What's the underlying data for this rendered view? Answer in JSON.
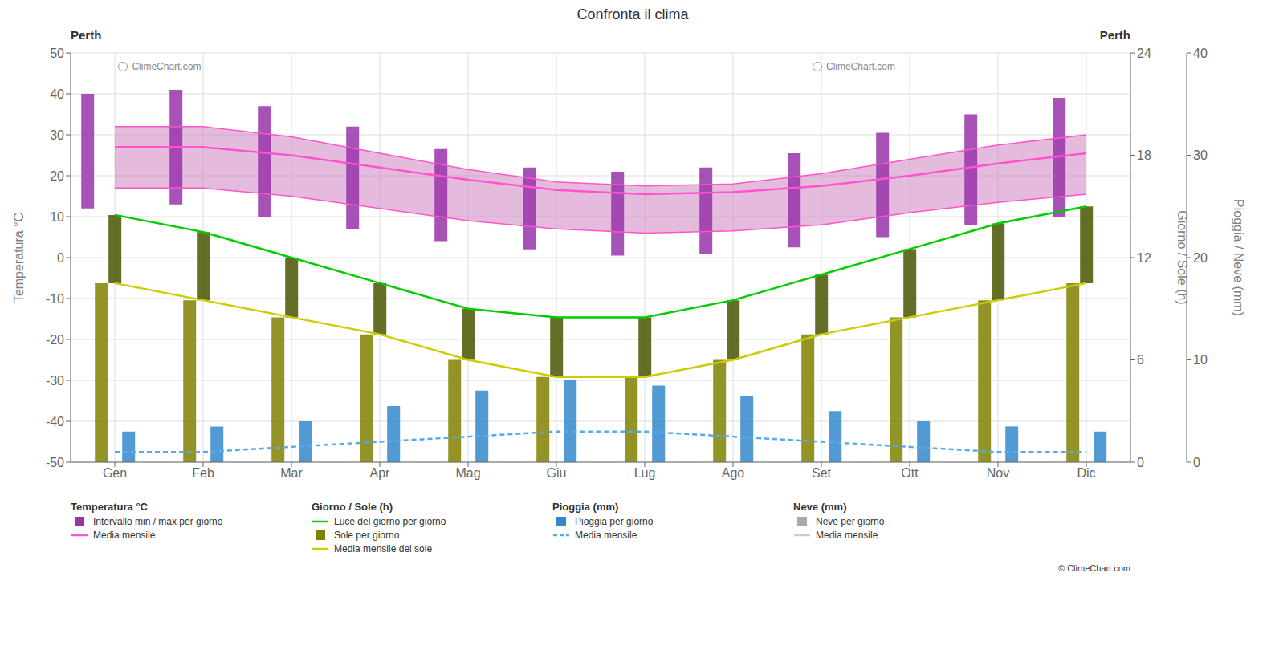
{
  "chart_data": {
    "type": "bar",
    "title": "Confronta il clima",
    "subtitle": "Perth",
    "categories": [
      "Gen",
      "Feb",
      "Mar",
      "Apr",
      "Mag",
      "Giu",
      "Lug",
      "Ago",
      "Set",
      "Ott",
      "Nov",
      "Dic"
    ],
    "y_label": "Temperatura °C",
    "y2_label": "Giorno / Sole (h)",
    "y3_label": "Pioggia / Neve (mm)",
    "ylim": [
      -50,
      50
    ],
    "yticks": [
      -50,
      -40,
      -30,
      -20,
      -10,
      0,
      10,
      20,
      30,
      40,
      50
    ],
    "y2lim": [
      0,
      24
    ],
    "y2ticks": [
      0,
      6,
      12,
      18,
      24
    ],
    "y3lim": [
      0,
      40
    ],
    "y3ticks": [
      0,
      10,
      20,
      30,
      40
    ],
    "grid": true,
    "legend": "bottom",
    "legend_groups": [
      "Temperatura °C",
      "Giorno / Sole (h)",
      "Pioggia (mm)",
      "Neve (mm)"
    ],
    "series": [
      {
        "name": "Intervallo min / max per giorno",
        "group": "Temperatura °C",
        "type": "range_bar",
        "color": "#9933aa",
        "low": [
          12.0,
          13.0,
          10.0,
          7.0,
          4.0,
          2.0,
          0.5,
          1.0,
          2.5,
          5.0,
          8.0,
          10.0
        ],
        "high": [
          40.0,
          41.0,
          37.0,
          32.0,
          26.5,
          22.0,
          21.0,
          22.0,
          25.5,
          30.5,
          35.0,
          39.0
        ]
      },
      {
        "type": "range_area",
        "color": "#cc77bb",
        "low": [
          17.0,
          17.0,
          15.0,
          12.0,
          9.0,
          7.0,
          6.0,
          6.5,
          8.0,
          11.0,
          13.5,
          15.5
        ],
        "high": [
          32.0,
          32.0,
          29.5,
          25.5,
          21.5,
          18.5,
          17.5,
          18.0,
          20.5,
          24.0,
          27.5,
          30.0
        ]
      },
      {
        "name": "Media mensile",
        "group": "Temperatura °C",
        "type": "line",
        "color": "#ff55cc",
        "values": [
          27.0,
          27.0,
          25.0,
          22.0,
          19.0,
          16.5,
          15.5,
          16.0,
          17.5,
          20.0,
          23.0,
          25.5
        ]
      },
      {
        "type": "line",
        "color": "#ff55cc",
        "values": [
          17.0,
          17.0,
          15.0,
          12.0,
          9.0,
          7.0,
          6.0,
          6.5,
          8.0,
          11.0,
          13.5,
          15.5
        ]
      },
      {
        "type": "line",
        "color": "#ff55cc",
        "values": [
          32.0,
          32.0,
          29.5,
          25.5,
          21.5,
          18.5,
          17.5,
          18.0,
          20.5,
          24.0,
          27.5,
          30.0
        ]
      },
      {
        "name": "Luce del giorno per giorno",
        "group": "Giorno / Sole (h)",
        "type": "line",
        "color": "#00cc00",
        "axis": "y2",
        "values": [
          14.5,
          13.5,
          12.0,
          10.5,
          9.0,
          8.5,
          8.5,
          9.5,
          11.0,
          12.5,
          14.0,
          15.0
        ]
      },
      {
        "name": "Sole per giorno",
        "group": "Giorno / Sole (h)",
        "color": "#808000",
        "axis": "y2",
        "values": [
          10.5,
          9.5,
          8.5,
          7.5,
          6.0,
          5.0,
          5.0,
          6.0,
          7.5,
          8.5,
          9.5,
          10.5
        ]
      },
      {
        "type": "range_bar",
        "color": "#4a5500",
        "axis": "y2",
        "low": [
          10.5,
          9.5,
          8.5,
          7.5,
          6.0,
          5.0,
          5.0,
          6.0,
          7.5,
          8.5,
          9.5,
          10.5
        ],
        "high": [
          14.5,
          13.5,
          12.0,
          10.5,
          9.0,
          8.5,
          8.5,
          9.5,
          11.0,
          12.5,
          14.0,
          15.0
        ]
      },
      {
        "name": "Media mensile del sole",
        "group": "Giorno / Sole (h)",
        "type": "line",
        "color": "#cccc00",
        "axis": "y2",
        "values": [
          10.5,
          9.5,
          8.5,
          7.5,
          6.0,
          5.0,
          5.0,
          6.0,
          7.5,
          8.5,
          9.5,
          10.5
        ]
      },
      {
        "name": "Pioggia per giorno",
        "group": "Pioggia (mm)",
        "color": "#3388cc",
        "axis": "y3",
        "values": [
          3.0,
          3.5,
          4.0,
          5.5,
          7.0,
          8.0,
          7.5,
          6.5,
          5.0,
          4.0,
          3.5,
          3.0
        ]
      },
      {
        "name": "Media mensile",
        "group": "Pioggia (mm)",
        "type": "line",
        "line_style": "dashed",
        "color": "#55aaee",
        "axis": "y3",
        "values": [
          1.0,
          1.0,
          1.5,
          2.0,
          2.5,
          3.0,
          3.0,
          2.5,
          2.0,
          1.5,
          1.0,
          1.0
        ]
      },
      {
        "name": "Neve per giorno",
        "group": "Neve (mm)",
        "color": "#aaaaaa",
        "axis": "y3",
        "values": [
          null,
          null,
          null,
          null,
          null,
          null,
          null,
          null,
          null,
          null,
          null,
          null
        ]
      },
      {
        "name": "Media mensile",
        "group": "Neve (mm)",
        "type": "line",
        "color": "#cccccc",
        "axis": "y3",
        "values": [
          null,
          null,
          null,
          null,
          null,
          null,
          null,
          null,
          null,
          null,
          null,
          null
        ]
      }
    ],
    "annotations": [
      "ClimeChart.com",
      "ClimeChart.com",
      "© ClimeChart.com"
    ]
  }
}
